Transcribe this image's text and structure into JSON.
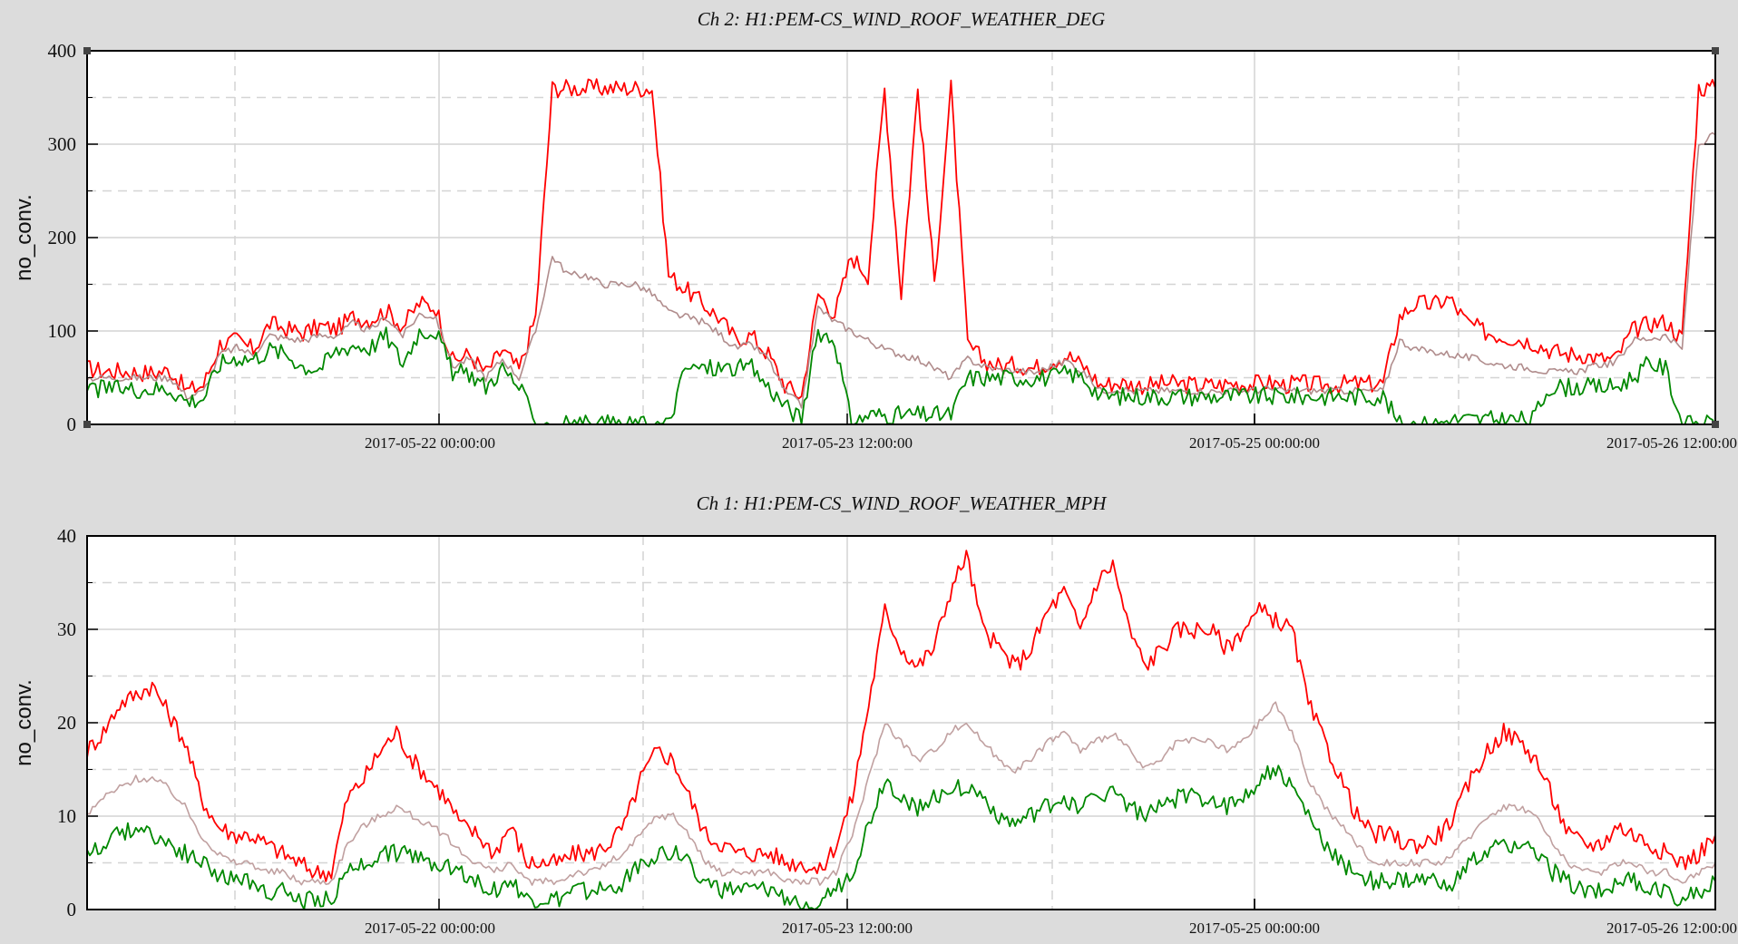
{
  "chart_data": [
    {
      "type": "line",
      "title": "Ch 2: H1:PEM-CS_WIND_ROOF_WEATHER_DEG",
      "ylabel": "no_conv.",
      "xlabel": "",
      "ylim": [
        0,
        400
      ],
      "y_ticks": [
        "0",
        "100",
        "200",
        "300",
        "400"
      ],
      "x_ticks": [
        "2017-05-22 00:00:00",
        "2017-05-23 12:00:00",
        "2017-05-25 00:00:00",
        "2017-05-26 12:00:00"
      ],
      "grid": true,
      "series": [
        {
          "role": "max",
          "color": "#ff0000",
          "values": [
            60,
            57,
            57,
            56,
            55,
            58,
            36,
            42,
            86,
            90,
            80,
            108,
            102,
            98,
            105,
            102,
            115,
            112,
            122,
            105,
            130,
            125,
            68,
            75,
            55,
            80,
            58,
            115,
            360,
            360,
            360,
            360,
            360,
            360,
            360,
            160,
            145,
            130,
            115,
            92,
            95,
            75,
            42,
            30,
            140,
            118,
            180,
            160,
            360,
            140,
            360,
            152,
            360,
            85,
            68,
            62,
            64,
            60,
            68,
            74,
            62,
            42,
            45,
            42,
            42,
            44,
            43,
            42,
            42,
            44,
            43,
            45,
            42,
            44,
            42,
            42,
            44,
            43,
            44,
            115,
            130,
            128,
            135,
            110,
            100,
            95,
            92,
            88,
            80,
            75,
            75,
            70,
            70,
            100,
            108,
            110,
            92,
            360,
            360
          ]
        },
        {
          "role": "mean",
          "color": "#b08c8c",
          "values": [
            50,
            50,
            50,
            50,
            50,
            50,
            30,
            35,
            75,
            82,
            75,
            95,
            92,
            90,
            95,
            95,
            108,
            100,
            115,
            95,
            118,
            115,
            62,
            70,
            50,
            70,
            50,
            100,
            180,
            160,
            160,
            150,
            150,
            150,
            140,
            120,
            115,
            110,
            98,
            82,
            85,
            70,
            35,
            20,
            125,
            110,
            100,
            90,
            80,
            75,
            70,
            60,
            50,
            70,
            62,
            58,
            58,
            55,
            62,
            68,
            55,
            36,
            38,
            36,
            36,
            36,
            36,
            36,
            35,
            36,
            36,
            38,
            36,
            36,
            36,
            36,
            36,
            36,
            36,
            90,
            80,
            78,
            75,
            72,
            68,
            64,
            62,
            60,
            56,
            56,
            58,
            64,
            66,
            90,
            92,
            95,
            80,
            300,
            310
          ]
        },
        {
          "role": "min",
          "color": "#008800",
          "values": [
            38,
            38,
            38,
            38,
            38,
            38,
            25,
            28,
            65,
            72,
            70,
            80,
            75,
            62,
            60,
            78,
            85,
            82,
            95,
            65,
            100,
            100,
            55,
            55,
            40,
            60,
            40,
            0,
            0,
            0,
            0,
            0,
            0,
            0,
            0,
            0,
            60,
            60,
            60,
            60,
            60,
            40,
            20,
            5,
            100,
            90,
            0,
            10,
            10,
            10,
            10,
            10,
            10,
            50,
            50,
            50,
            50,
            50,
            50,
            55,
            50,
            30,
            30,
            30,
            30,
            30,
            30,
            30,
            30,
            30,
            30,
            30,
            30,
            30,
            30,
            30,
            30,
            30,
            30,
            0,
            0,
            0,
            5,
            5,
            5,
            5,
            5,
            5,
            40,
            40,
            40,
            40,
            40,
            50,
            65,
            60,
            0,
            0,
            0
          ]
        }
      ]
    },
    {
      "type": "line",
      "title": "Ch 1: H1:PEM-CS_WIND_ROOF_WEATHER_MPH",
      "ylabel": "no_conv.",
      "xlabel": "",
      "ylim": [
        0,
        40
      ],
      "y_ticks": [
        "0",
        "10",
        "20",
        "30",
        "40"
      ],
      "x_ticks": [
        "2017-05-22 00:00:00",
        "2017-05-23 12:00:00",
        "2017-05-25 00:00:00",
        "2017-05-26 12:00:00"
      ],
      "grid": true,
      "series": [
        {
          "role": "max",
          "color": "#ff0000",
          "values": [
            17,
            19,
            22,
            23,
            24,
            21,
            18,
            12,
            9,
            8,
            8,
            7,
            6,
            5,
            4,
            4,
            12,
            14,
            17,
            19,
            16,
            14,
            12,
            9,
            8,
            6,
            9,
            5,
            5,
            5,
            6,
            6,
            7,
            9,
            14,
            17,
            16,
            12,
            8,
            7,
            6,
            6,
            6,
            5,
            5,
            4,
            7,
            12,
            22,
            32,
            28,
            26,
            28,
            34,
            38,
            30,
            28,
            26,
            28,
            32,
            34,
            30,
            35,
            37,
            30,
            26,
            28,
            30,
            30,
            30,
            28,
            30,
            32,
            31,
            30,
            22,
            18,
            14,
            10,
            8,
            8,
            7,
            7,
            8,
            10,
            14,
            17,
            19,
            18,
            16,
            12,
            8,
            7,
            7,
            9,
            8,
            7,
            6,
            5,
            6,
            8
          ]
        },
        {
          "role": "mean",
          "color": "#c0a0a0",
          "values": [
            10,
            12,
            13,
            14,
            14,
            13,
            11,
            8,
            6,
            5,
            5,
            4,
            4,
            3,
            3,
            3,
            7,
            9,
            10,
            11,
            10,
            9,
            8,
            6,
            5,
            4,
            5,
            3,
            3,
            3,
            4,
            4,
            5,
            6,
            8,
            10,
            10,
            8,
            5,
            4,
            4,
            4,
            4,
            3,
            3,
            3,
            4,
            8,
            14,
            20,
            18,
            16,
            17,
            19,
            20,
            18,
            16,
            15,
            16,
            18,
            19,
            17,
            18,
            19,
            17,
            15,
            16,
            18,
            18,
            18,
            17,
            18,
            20,
            22,
            19,
            14,
            11,
            9,
            7,
            5,
            5,
            5,
            5,
            5,
            6,
            8,
            10,
            11,
            11,
            10,
            7,
            5,
            4,
            4,
            5,
            5,
            4,
            4,
            3,
            4,
            5
          ]
        },
        {
          "role": "min",
          "color": "#008800",
          "values": [
            6,
            7,
            8,
            9,
            8,
            7,
            6,
            5,
            4,
            3,
            3,
            2,
            2,
            1,
            1,
            1,
            4,
            5,
            6,
            6,
            6,
            5,
            5,
            4,
            3,
            2,
            3,
            1,
            1,
            1,
            2,
            2,
            2,
            3,
            5,
            6,
            6,
            5,
            3,
            2,
            2,
            2,
            2,
            1,
            1,
            1,
            2,
            4,
            9,
            14,
            12,
            11,
            12,
            13,
            13,
            12,
            10,
            9,
            10,
            11,
            12,
            11,
            12,
            13,
            11,
            10,
            11,
            12,
            12,
            12,
            11,
            12,
            14,
            15,
            13,
            10,
            7,
            5,
            4,
            3,
            3,
            3,
            3,
            3,
            3,
            5,
            6,
            7,
            7,
            6,
            4,
            3,
            2,
            2,
            3,
            3,
            2,
            2,
            1,
            2,
            3
          ]
        }
      ]
    }
  ]
}
